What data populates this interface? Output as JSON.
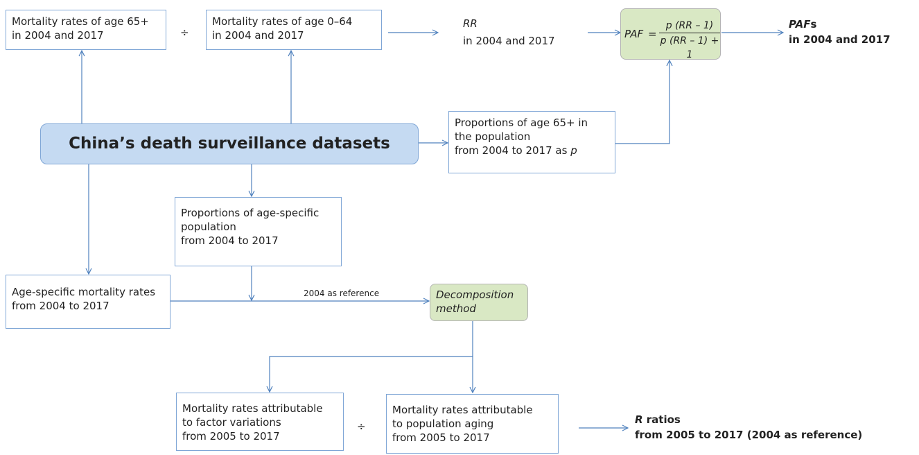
{
  "nodes": {
    "mort_65": [
      "Mortality rates of age 65+",
      "in 2004 and 2017"
    ],
    "divide_top": "÷",
    "mort_0_64": [
      "Mortality rates of age 0–64",
      "in 2004 and 2017"
    ],
    "rr": {
      "symbol": "RR",
      "line2": "in 2004 and 2017"
    },
    "paf_formula": {
      "lhs": "PAF",
      "equals": "=",
      "numerator": "p (RR – 1)",
      "denominator": "p (RR – 1) + 1"
    },
    "pafs": {
      "symbol": "PAF",
      "suffix": "s",
      "line2": "in 2004 and 2017"
    },
    "datasets": "China’s death surveillance datasets",
    "prop_65": {
      "lines": [
        "Proportions of age 65+ in",
        "the population",
        "from 2004 to 2017 as"
      ],
      "variable": "p"
    },
    "prop_age_specific": [
      "Proportions of age-specific",
      "population",
      "from 2004 to 2017"
    ],
    "age_specific_mort": [
      "Age-specific mortality rates",
      "from 2004 to 2017"
    ],
    "reference_label": "2004 as reference",
    "decomposition": [
      "Decomposition",
      "method"
    ],
    "factor_variations": [
      "Mortality rates attributable",
      "to factor variations",
      "from 2005 to 2017"
    ],
    "divide_bottom": "÷",
    "population_aging": [
      "Mortality rates attributable",
      "to population aging",
      "from 2005 to 2017"
    ],
    "r_ratios": {
      "symbol": "R",
      "suffix": " ratios",
      "line2": "from 2005 to 2017 (2004 as reference)"
    }
  }
}
